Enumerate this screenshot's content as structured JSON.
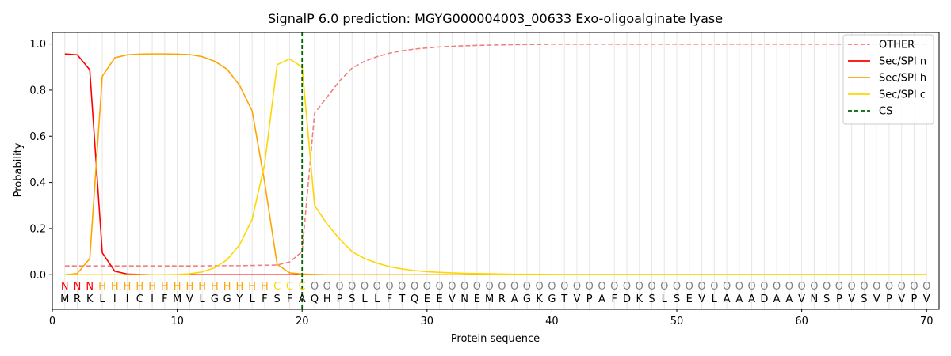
{
  "chart_data": {
    "type": "line",
    "title": "SignalP 6.0 prediction: MGYG000004003_00633 Exo-oligoalginate lyase",
    "xlabel": "Protein sequence",
    "ylabel": "Probability",
    "xlim": [
      0,
      71
    ],
    "ylim": [
      -0.15,
      1.05
    ],
    "xticks": [
      0,
      10,
      20,
      30,
      40,
      50,
      60,
      70
    ],
    "yticks": [
      0.0,
      0.2,
      0.4,
      0.6,
      0.8,
      1.0
    ],
    "grid": "vertical lines at each residue",
    "legend_position": "top-right",
    "sequence": [
      "M",
      "R",
      "K",
      "L",
      "I",
      "I",
      "C",
      "I",
      "F",
      "M",
      "V",
      "L",
      "G",
      "G",
      "Y",
      "L",
      "F",
      "S",
      "F",
      "A",
      "Q",
      "H",
      "P",
      "S",
      "L",
      "L",
      "F",
      "T",
      "Q",
      "E",
      "E",
      "V",
      "N",
      "E",
      "M",
      "R",
      "A",
      "G",
      "K",
      "G",
      "T",
      "V",
      "P",
      "A",
      "F",
      "D",
      "K",
      "S",
      "L",
      "S",
      "E",
      "V",
      "L",
      "A",
      "A",
      "A",
      "D",
      "A",
      "A",
      "V",
      "N",
      "S",
      "P",
      "V",
      "S",
      "V",
      "P",
      "V",
      "P",
      "V"
    ],
    "class_labels": [
      "N",
      "N",
      "N",
      "H",
      "H",
      "H",
      "H",
      "H",
      "H",
      "H",
      "H",
      "H",
      "H",
      "H",
      "H",
      "H",
      "H",
      "C",
      "C",
      "C",
      "O",
      "O",
      "O",
      "O",
      "O",
      "O",
      "O",
      "O",
      "O",
      "O",
      "O",
      "O",
      "O",
      "O",
      "O",
      "O",
      "O",
      "O",
      "O",
      "O",
      "O",
      "O",
      "O",
      "O",
      "O",
      "O",
      "O",
      "O",
      "O",
      "O",
      "O",
      "O",
      "O",
      "O",
      "O",
      "O",
      "O",
      "O",
      "O",
      "O",
      "O",
      "O",
      "O",
      "O",
      "O",
      "O",
      "O",
      "O",
      "O",
      "O"
    ],
    "class_colors": {
      "N": "#ff0000",
      "H": "#ffa500",
      "C": "#ffd700",
      "O": "#808080"
    },
    "cleavage_site": 20,
    "series": [
      {
        "name": "OTHER",
        "color": "#f08080",
        "dash": true,
        "values": [
          0.038,
          0.038,
          0.038,
          0.038,
          0.038,
          0.038,
          0.038,
          0.038,
          0.038,
          0.038,
          0.038,
          0.038,
          0.039,
          0.039,
          0.039,
          0.04,
          0.041,
          0.042,
          0.055,
          0.1,
          0.7,
          0.77,
          0.84,
          0.895,
          0.925,
          0.945,
          0.96,
          0.97,
          0.978,
          0.983,
          0.987,
          0.99,
          0.992,
          0.994,
          0.995,
          0.996,
          0.997,
          0.998,
          0.998,
          0.999,
          0.999,
          0.999,
          0.999,
          0.999,
          0.999,
          0.999,
          0.999,
          0.999,
          0.999,
          0.999,
          0.999,
          0.999,
          0.999,
          0.999,
          0.999,
          0.999,
          0.999,
          0.999,
          0.999,
          0.999,
          0.999,
          0.999,
          0.999,
          0.999,
          0.999,
          0.999,
          0.999,
          0.999,
          0.999,
          0.999
        ]
      },
      {
        "name": "Sec/SPI n",
        "color": "#ff0000",
        "dash": false,
        "values": [
          0.957,
          0.953,
          0.888,
          0.095,
          0.015,
          0.003,
          0.001,
          0.0,
          0.0,
          0.0,
          0.0,
          0.0,
          0.0,
          0.0,
          0.0,
          0.0,
          0.0,
          0.0,
          0.0,
          0.0,
          0.0,
          0.0,
          0.0,
          0.0,
          0.0,
          0.0,
          0.0,
          0.0,
          0.0,
          0.0,
          0.0,
          0.0,
          0.0,
          0.0,
          0.0,
          0.0,
          0.0,
          0.0,
          0.0,
          0.0,
          0.0,
          0.0,
          0.0,
          0.0,
          0.0,
          0.0,
          0.0,
          0.0,
          0.0,
          0.0,
          0.0,
          0.0,
          0.0,
          0.0,
          0.0,
          0.0,
          0.0,
          0.0,
          0.0,
          0.0,
          0.0,
          0.0,
          0.0,
          0.0,
          0.0,
          0.0,
          0.0,
          0.0,
          0.0,
          0.0
        ]
      },
      {
        "name": "Sec/SPI h",
        "color": "#ffa500",
        "dash": false,
        "values": [
          0.0,
          0.005,
          0.07,
          0.86,
          0.94,
          0.953,
          0.956,
          0.957,
          0.957,
          0.956,
          0.954,
          0.945,
          0.925,
          0.89,
          0.82,
          0.71,
          0.4,
          0.045,
          0.008,
          0.003,
          0.001,
          0.0,
          0.0,
          0.0,
          0.0,
          0.0,
          0.0,
          0.0,
          0.0,
          0.0,
          0.0,
          0.0,
          0.0,
          0.0,
          0.0,
          0.0,
          0.0,
          0.0,
          0.0,
          0.0,
          0.0,
          0.0,
          0.0,
          0.0,
          0.0,
          0.0,
          0.0,
          0.0,
          0.0,
          0.0,
          0.0,
          0.0,
          0.0,
          0.0,
          0.0,
          0.0,
          0.0,
          0.0,
          0.0,
          0.0,
          0.0,
          0.0,
          0.0,
          0.0,
          0.0,
          0.0,
          0.0,
          0.0,
          0.0,
          0.0
        ]
      },
      {
        "name": "Sec/SPI c",
        "color": "#ffd700",
        "dash": false,
        "values": [
          0.0,
          0.0,
          0.0,
          0.0,
          0.0,
          0.0,
          0.0,
          0.0,
          0.0,
          0.001,
          0.004,
          0.012,
          0.03,
          0.065,
          0.13,
          0.24,
          0.48,
          0.91,
          0.935,
          0.9,
          0.3,
          0.22,
          0.155,
          0.1,
          0.07,
          0.05,
          0.035,
          0.025,
          0.018,
          0.013,
          0.01,
          0.008,
          0.006,
          0.005,
          0.004,
          0.003,
          0.002,
          0.002,
          0.002,
          0.001,
          0.001,
          0.001,
          0.001,
          0.001,
          0.001,
          0.001,
          0.001,
          0.001,
          0.001,
          0.001,
          0.001,
          0.001,
          0.001,
          0.001,
          0.001,
          0.001,
          0.001,
          0.001,
          0.001,
          0.001,
          0.001,
          0.001,
          0.001,
          0.001,
          0.001,
          0.001,
          0.001,
          0.001,
          0.001,
          0.001
        ]
      }
    ],
    "legend": [
      {
        "label": "OTHER",
        "color": "#f08080",
        "dash": true
      },
      {
        "label": "Sec/SPI n",
        "color": "#ff0000",
        "dash": false
      },
      {
        "label": "Sec/SPI h",
        "color": "#ffa500",
        "dash": false
      },
      {
        "label": "Sec/SPI c",
        "color": "#ffd700",
        "dash": false
      },
      {
        "label": "CS",
        "color": "#006400",
        "dash": true
      }
    ]
  }
}
